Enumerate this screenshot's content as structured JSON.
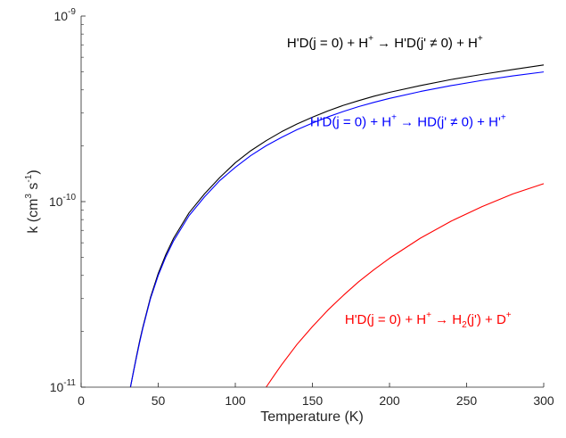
{
  "chart_data": {
    "type": "line",
    "xlabel": "Temperature (K)",
    "ylabel": {
      "base": "k (cm",
      "exp1": "3",
      "mid": " s",
      "exp2": "-1",
      "end": ")"
    },
    "xlim": [
      0,
      300
    ],
    "ylim": [
      1e-11,
      1e-09
    ],
    "yscale": "log",
    "grid": false,
    "x_ticks": [
      {
        "value": 0,
        "label": "0"
      },
      {
        "value": 50,
        "label": "50"
      },
      {
        "value": 100,
        "label": "100"
      },
      {
        "value": 150,
        "label": "150"
      },
      {
        "value": 200,
        "label": "200"
      },
      {
        "value": 250,
        "label": "250"
      },
      {
        "value": 300,
        "label": "300"
      }
    ],
    "y_ticks": [
      {
        "value": 1e-11,
        "base": "10",
        "exp": "-11"
      },
      {
        "value": 1e-10,
        "base": "10",
        "exp": "-10"
      },
      {
        "value": 1e-09,
        "base": "10",
        "exp": "-9"
      }
    ],
    "series": [
      {
        "color": "#000000",
        "x": [
          32,
          34,
          36,
          38,
          40,
          45,
          50,
          55,
          60,
          70,
          80,
          90,
          100,
          110,
          120,
          130,
          140,
          150,
          160,
          170,
          180,
          190,
          200,
          220,
          240,
          260,
          280,
          300
        ],
        "y": [
          1e-11,
          1.22e-11,
          1.48e-11,
          1.78e-11,
          2.1e-11,
          3.05e-11,
          4.1e-11,
          5.2e-11,
          6.35e-11,
          8.7e-11,
          1.1e-10,
          1.35e-10,
          1.62e-10,
          1.88e-10,
          2.13e-10,
          2.38e-10,
          2.62e-10,
          2.85e-10,
          3.08e-10,
          3.3e-10,
          3.5e-10,
          3.7e-10,
          3.88e-10,
          4.22e-10,
          4.55e-10,
          4.85e-10,
          5.15e-10,
          5.45e-10
        ]
      },
      {
        "color": "#0000ff",
        "x": [
          32,
          34,
          36,
          38,
          40,
          45,
          50,
          55,
          60,
          70,
          80,
          90,
          100,
          110,
          120,
          130,
          140,
          150,
          160,
          170,
          180,
          190,
          200,
          220,
          240,
          260,
          280,
          300
        ],
        "y": [
          1e-11,
          1.21e-11,
          1.46e-11,
          1.75e-11,
          2.07e-11,
          3e-11,
          4e-11,
          5.05e-11,
          6.15e-11,
          8.4e-11,
          1.06e-10,
          1.3e-10,
          1.53e-10,
          1.77e-10,
          2e-10,
          2.22e-10,
          2.44e-10,
          2.65e-10,
          2.86e-10,
          3.06e-10,
          3.25e-10,
          3.43e-10,
          3.6e-10,
          3.92e-10,
          4.22e-10,
          4.5e-10,
          4.76e-10,
          5e-10
        ]
      },
      {
        "color": "#ff0000",
        "x": [
          120,
          125,
          130,
          140,
          150,
          160,
          170,
          180,
          190,
          200,
          220,
          240,
          260,
          280,
          300
        ],
        "y": [
          1e-11,
          1.15e-11,
          1.32e-11,
          1.7e-11,
          2.12e-11,
          2.6e-11,
          3.12e-11,
          3.7e-11,
          4.3e-11,
          4.95e-11,
          6.35e-11,
          7.85e-11,
          9.4e-11,
          1.1e-10,
          1.25e-10
        ]
      }
    ],
    "annotations": [
      {
        "color": "#000000",
        "anchor_x": 197,
        "anchor_y": 6.8e-10,
        "parts": [
          {
            "t": "H'D(j = 0) + H"
          },
          {
            "t": "+",
            "sup": true
          },
          {
            "t": " → H'D(j' ≠ 0) + H"
          },
          {
            "t": "+",
            "sup": true
          }
        ]
      },
      {
        "color": "#0000ff",
        "anchor_x": 212,
        "anchor_y": 2.55e-10,
        "parts": [
          {
            "t": "H'D(j = 0) + H"
          },
          {
            "t": "+",
            "sup": true
          },
          {
            "t": " → HD(j' ≠ 0) + H'"
          },
          {
            "t": "+",
            "sup": true
          }
        ]
      },
      {
        "color": "#ff0000",
        "anchor_x": 225,
        "anchor_y": 2.2e-11,
        "parts": [
          {
            "t": "H'D(j = 0) + H"
          },
          {
            "t": "+",
            "sup": true
          },
          {
            "t": " → H"
          },
          {
            "t": "2",
            "sub": true
          },
          {
            "t": "(j') + D"
          },
          {
            "t": "+",
            "sup": true
          }
        ]
      }
    ]
  }
}
